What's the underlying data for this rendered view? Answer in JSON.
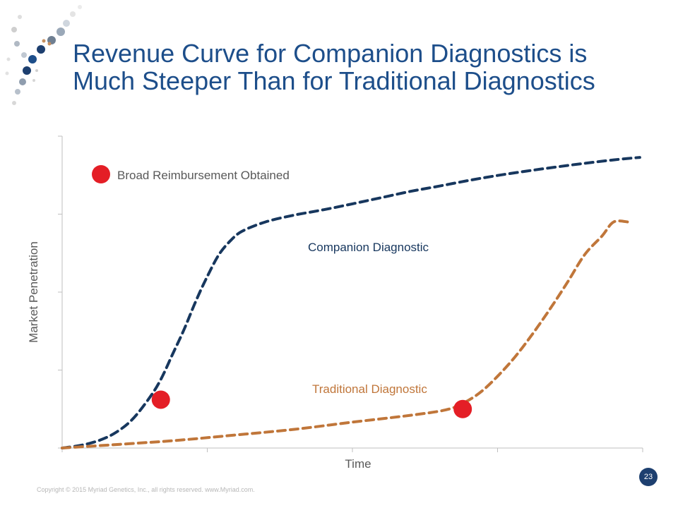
{
  "slide": {
    "title_line1": "Revenue Curve for Companion Diagnostics is",
    "title_line2": "Much Steeper Than for Traditional Diagnostics",
    "footer": "Copyright © 2015 Myriad Genetics, Inc., all rights reserved.  www.Myriad.com.",
    "page_number": "23"
  },
  "colors": {
    "title": "#1d4e8a",
    "companion": "#17375e",
    "traditional": "#c0763a",
    "marker": "#e41e26",
    "axis": "#bfbfbf"
  },
  "chart_data": {
    "type": "line",
    "title": "",
    "xlabel": "Time",
    "ylabel": "Market Penetration",
    "xlim": [
      0,
      100
    ],
    "ylim": [
      0,
      100
    ],
    "y_ticks": [
      0,
      25,
      50,
      75,
      100
    ],
    "x_ticks": [
      0,
      25,
      50,
      75,
      100
    ],
    "grid": false,
    "legend": {
      "marker_label": "Broad Reimbursement Obtained",
      "placement": "top-left"
    },
    "series": [
      {
        "name": "Companion Diagnostic",
        "style": "dashed",
        "x": [
          0,
          3,
          6,
          9,
          12,
          15,
          17,
          19,
          21,
          23,
          25,
          27,
          29,
          31,
          35,
          40,
          45,
          50,
          55,
          60,
          65,
          70,
          75,
          80,
          85,
          90,
          95,
          99.5
        ],
        "y": [
          0,
          0.8,
          2.2,
          4.7,
          9,
          16,
          22,
          30,
          38,
          47,
          55,
          62,
          66.5,
          69.5,
          72.5,
          74.7,
          76.4,
          78.3,
          80.3,
          82.3,
          84,
          85.8,
          87.4,
          88.8,
          90.1,
          91.3,
          92.4,
          93.2
        ]
      },
      {
        "name": "Traditional Diagnostic",
        "style": "dashed",
        "x": [
          0,
          10,
          20,
          30,
          40,
          50,
          60,
          66,
          69,
          72,
          75,
          78,
          81,
          84,
          87,
          90,
          93,
          95,
          97.5
        ],
        "y": [
          0,
          1.2,
          2.5,
          4.2,
          6.0,
          8.3,
          10.5,
          12.2,
          14.3,
          17.8,
          23,
          29.2,
          36.5,
          44.5,
          53,
          62,
          68,
          72.5,
          72.5
        ]
      }
    ],
    "reimbursement_points": [
      {
        "series": "Companion Diagnostic",
        "x": 17,
        "y": 15.5
      },
      {
        "series": "Traditional Diagnostic",
        "x": 69,
        "y": 12.5
      }
    ],
    "annotations": [
      {
        "text": "Companion Diagnostic",
        "series": "Companion Diagnostic"
      },
      {
        "text": "Traditional Diagnostic",
        "series": "Traditional Diagnostic"
      }
    ]
  }
}
